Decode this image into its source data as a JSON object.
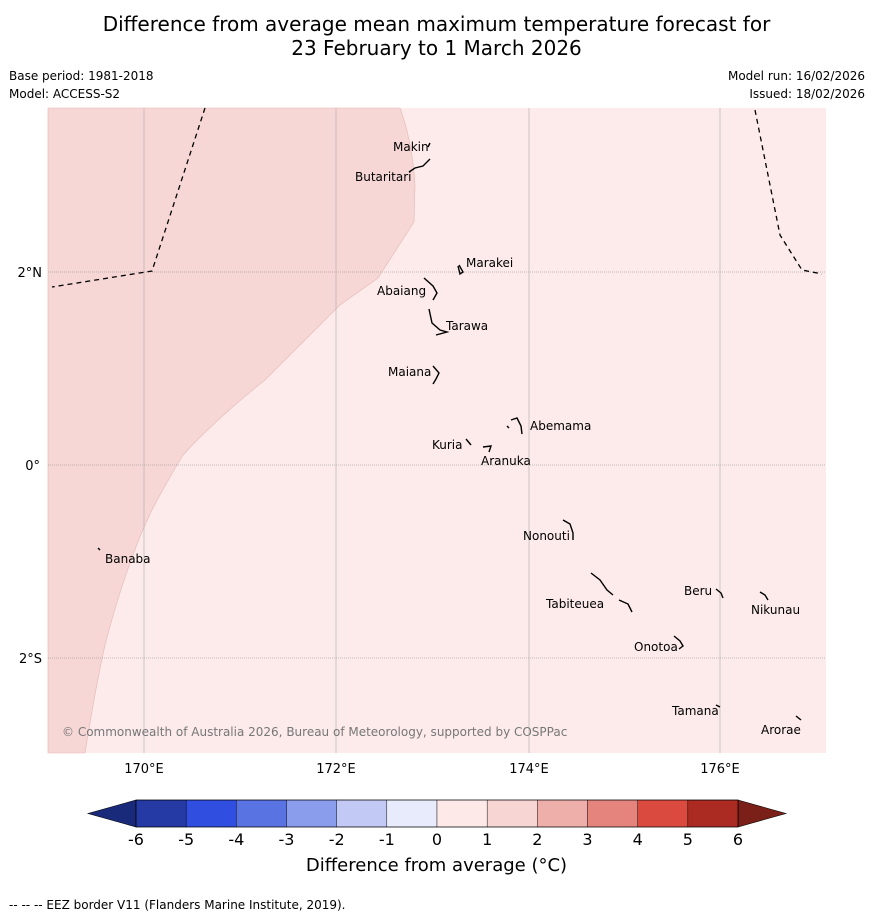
{
  "title_line1": "Difference from average mean maximum temperature forecast for",
  "title_line2": "23 February to 1 March 2026",
  "base_period": "Base period: 1981-2018",
  "model": "Model: ACCESS-S2",
  "model_run": "Model run: 16/02/2026",
  "issued": "Issued: 18/02/2026",
  "copyright": "© Commonwealth of Australia 2026, Bureau of Meteorology, supported by COSPPac",
  "lat_labels": [
    "2°N",
    "0°",
    "2°S"
  ],
  "lon_labels": [
    "170°E",
    "172°E",
    "174°E",
    "176°E"
  ],
  "islands": [
    "Makin",
    "Butaritari",
    "Marakei",
    "Abaiang",
    "Tarawa",
    "Maiana",
    "Abemama",
    "Kuria",
    "Aranuka",
    "Banaba",
    "Nonouti",
    "Tabiteuea",
    "Beru",
    "Nikunau",
    "Onotoa",
    "Tamana",
    "Arorae"
  ],
  "colorbar": {
    "label": "Difference from average (°C)",
    "ticks": [
      "-6",
      "-5",
      "-4",
      "-3",
      "-2",
      "-1",
      "0",
      "1",
      "2",
      "3",
      "4",
      "5",
      "6"
    ],
    "colors": [
      "#253aa5",
      "#304fe0",
      "#5a73e3",
      "#8a9cec",
      "#c1c9f4",
      "#e8ebfb",
      "#fce9e8",
      "#f6d5d3",
      "#eeafaa",
      "#e5847d",
      "#da4a3e",
      "#ab2a22"
    ],
    "low_extend_color": "#1a2a7a",
    "high_extend_color": "#7b2018"
  },
  "map_fill": {
    "band_0_1": "#fcebea",
    "band_1_2": "#f6d7d5"
  },
  "footnote": "--  --  -- EEZ border V11 (Flanders Marine Institute, 2019)."
}
